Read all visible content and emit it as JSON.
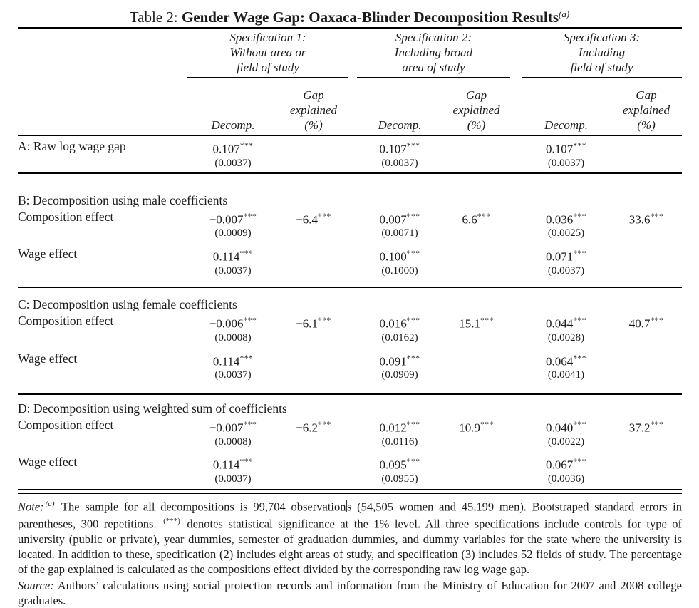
{
  "title": {
    "prefix": "Table 2: ",
    "main": "Gender Wage Gap: Oaxaca-Blinder Decomposition Results",
    "sup": "(a)"
  },
  "header": {
    "specs": [
      {
        "line1": "Specification 1:",
        "line2": "Without area or",
        "line3": "field of study"
      },
      {
        "line1": "Specification 2:",
        "line2": "Including broad",
        "line3": "area of study"
      },
      {
        "line1": "Specification 3:",
        "line2": "Including",
        "line3": "field of study"
      }
    ],
    "decomp": "Decomp.",
    "gap1": "Gap",
    "gap2": "explained",
    "gap3": "(%)"
  },
  "row_a": {
    "label": "A: Raw log wage gap",
    "cells": [
      {
        "decomp": "0.107",
        "stars": "***",
        "se": "(0.0037)"
      },
      {
        "decomp": "0.107",
        "stars": "***",
        "se": "(0.0037)"
      },
      {
        "decomp": "0.107",
        "stars": "***",
        "se": "(0.0037)"
      }
    ]
  },
  "panels": [
    {
      "header": "B: Decomposition using male coefficients",
      "composition": {
        "label": "Composition effect",
        "cells": [
          {
            "decomp": "−0.007",
            "stars": "***",
            "se": "(0.0009)",
            "gap": "−6.4",
            "gap_stars": "***"
          },
          {
            "decomp": "0.007",
            "stars": "***",
            "se": "(0.0071)",
            "gap": "6.6",
            "gap_stars": "***"
          },
          {
            "decomp": "0.036",
            "stars": "***",
            "se": "(0.0025)",
            "gap": "33.6",
            "gap_stars": "***"
          }
        ]
      },
      "wage": {
        "label": "Wage effect",
        "cells": [
          {
            "decomp": "0.114",
            "stars": "***",
            "se": "(0.0037)"
          },
          {
            "decomp": "0.100",
            "stars": "***",
            "se": "(0.1000)"
          },
          {
            "decomp": "0.071",
            "stars": "***",
            "se": "(0.0037)"
          }
        ]
      }
    },
    {
      "header": "C: Decomposition using female coefficients",
      "composition": {
        "label": "Composition effect",
        "cells": [
          {
            "decomp": "−0.006",
            "stars": "***",
            "se": "(0.0008)",
            "gap": "−6.1",
            "gap_stars": "***"
          },
          {
            "decomp": "0.016",
            "stars": "***",
            "se": "(0.0162)",
            "gap": "15.1",
            "gap_stars": "***"
          },
          {
            "decomp": "0.044",
            "stars": "***",
            "se": "(0.0028)",
            "gap": "40.7",
            "gap_stars": "***"
          }
        ]
      },
      "wage": {
        "label": "Wage effect",
        "cells": [
          {
            "decomp": "0.114",
            "stars": "***",
            "se": "(0.0037)"
          },
          {
            "decomp": "0.091",
            "stars": "***",
            "se": "(0.0909)"
          },
          {
            "decomp": "0.064",
            "stars": "***",
            "se": "(0.0041)"
          }
        ]
      }
    },
    {
      "header": "D: Decomposition using weighted sum of coefficients",
      "composition": {
        "label": "Composition effect",
        "cells": [
          {
            "decomp": "−0.007",
            "stars": "***",
            "se": "(0.0008)",
            "gap": "−6.2",
            "gap_stars": "***"
          },
          {
            "decomp": "0.012",
            "stars": "***",
            "se": "(0.0116)",
            "gap": "10.9",
            "gap_stars": "***"
          },
          {
            "decomp": "0.040",
            "stars": "***",
            "se": "(0.0022)",
            "gap": "37.2",
            "gap_stars": "***"
          }
        ]
      },
      "wage": {
        "label": "Wage effect",
        "cells": [
          {
            "decomp": "0.114",
            "stars": "***",
            "se": "(0.0037)"
          },
          {
            "decomp": "0.095",
            "stars": "***",
            "se": "(0.0955)"
          },
          {
            "decomp": "0.067",
            "stars": "***",
            "se": "(0.0036)"
          }
        ]
      }
    }
  ],
  "notes": {
    "note_label": "Note:",
    "note_sup": "(a)",
    "note_text_1": " The sample for all decompositions is 99,704 observation",
    "note_text_2": "s (54,505 women and 45,199 men). Bootstraped standard errors in parentheses, 300 repetitions. ",
    "note_sig_sup": "(***)",
    "note_text_3": " denotes statistical significance at the 1% level. All three specifications include controls for type of university (public or private), year dummies, semester of graduation dummies, and dummy variables for the state where the university is located. In addition to these, specification (2) includes eight areas of study, and specification (3) includes 52 fields of study. The percentage of the gap explained is calculated as the compositions effect divided by the corresponding raw log wage gap.",
    "source_label": "Source:",
    "source_text": " Authors’ calculations using social protection records and information from the Ministry of Education for 2007 and 2008 college graduates."
  }
}
